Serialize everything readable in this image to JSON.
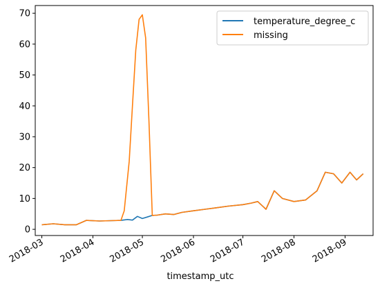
{
  "chart_data": {
    "type": "line",
    "title": "",
    "xlabel": "timestamp_utc",
    "ylabel": "",
    "x_ticks": [
      "2018-03",
      "2018-04",
      "2018-05",
      "2018-06",
      "2018-07",
      "2018-08",
      "2018-09"
    ],
    "y_ticks": [
      0,
      10,
      20,
      30,
      40,
      50,
      60,
      70
    ],
    "xlim": [
      "2018-02-25",
      "2018-09-18"
    ],
    "ylim": [
      -2,
      72.5
    ],
    "grid": false,
    "legend_position": "top-right",
    "series": [
      {
        "name": "temperature_degree_c",
        "color": "#1f77b4",
        "x": [
          "2018-03-01",
          "2018-03-08",
          "2018-03-15",
          "2018-03-22",
          "2018-03-28",
          "2018-04-05",
          "2018-04-12",
          "2018-04-18",
          "2018-04-22",
          "2018-04-25",
          "2018-04-28",
          "2018-05-01",
          "2018-05-04",
          "2018-05-07",
          "2018-05-10",
          "2018-05-15",
          "2018-05-20",
          "2018-05-25",
          "2018-06-01",
          "2018-06-08",
          "2018-06-15",
          "2018-06-22",
          "2018-07-01",
          "2018-07-06",
          "2018-07-10",
          "2018-07-15",
          "2018-07-20",
          "2018-07-25",
          "2018-08-01",
          "2018-08-08",
          "2018-08-15",
          "2018-08-20",
          "2018-08-25",
          "2018-08-30",
          "2018-09-04",
          "2018-09-08",
          "2018-09-12"
        ],
        "y": [
          1.5,
          1.8,
          1.5,
          1.5,
          2.9,
          2.7,
          2.8,
          2.9,
          3.2,
          3.0,
          4.2,
          3.5,
          4.0,
          4.5,
          4.6,
          5.0,
          4.8,
          5.5,
          6.0,
          6.5,
          7.0,
          7.5,
          8.0,
          8.5,
          9.0,
          6.5,
          12.5,
          10.0,
          9.0,
          9.5,
          12.5,
          18.5,
          18.0,
          15.0,
          18.5,
          16.0,
          18.0
        ]
      },
      {
        "name": "missing",
        "color": "#ff7f0e",
        "x": [
          "2018-03-01",
          "2018-03-08",
          "2018-03-15",
          "2018-03-22",
          "2018-03-28",
          "2018-04-05",
          "2018-04-12",
          "2018-04-18",
          "2018-04-20",
          "2018-04-23",
          "2018-04-25",
          "2018-04-27",
          "2018-04-29",
          "2018-05-01",
          "2018-05-03",
          "2018-05-05",
          "2018-05-07",
          "2018-05-10",
          "2018-05-15",
          "2018-05-20",
          "2018-05-25",
          "2018-06-01",
          "2018-06-08",
          "2018-06-15",
          "2018-06-22",
          "2018-07-01",
          "2018-07-06",
          "2018-07-10",
          "2018-07-15",
          "2018-07-20",
          "2018-07-25",
          "2018-08-01",
          "2018-08-08",
          "2018-08-15",
          "2018-08-20",
          "2018-08-25",
          "2018-08-30",
          "2018-09-04",
          "2018-09-08",
          "2018-09-12"
        ],
        "y": [
          1.5,
          1.8,
          1.5,
          1.5,
          2.9,
          2.7,
          2.8,
          2.9,
          6.0,
          22.0,
          40.0,
          58.0,
          68.0,
          69.5,
          62.0,
          35.0,
          4.5,
          4.6,
          5.0,
          4.8,
          5.5,
          6.0,
          6.5,
          7.0,
          7.5,
          8.0,
          8.5,
          9.0,
          6.5,
          12.5,
          10.0,
          9.0,
          9.5,
          12.5,
          18.5,
          18.0,
          15.0,
          18.5,
          16.0,
          18.0
        ]
      }
    ]
  }
}
